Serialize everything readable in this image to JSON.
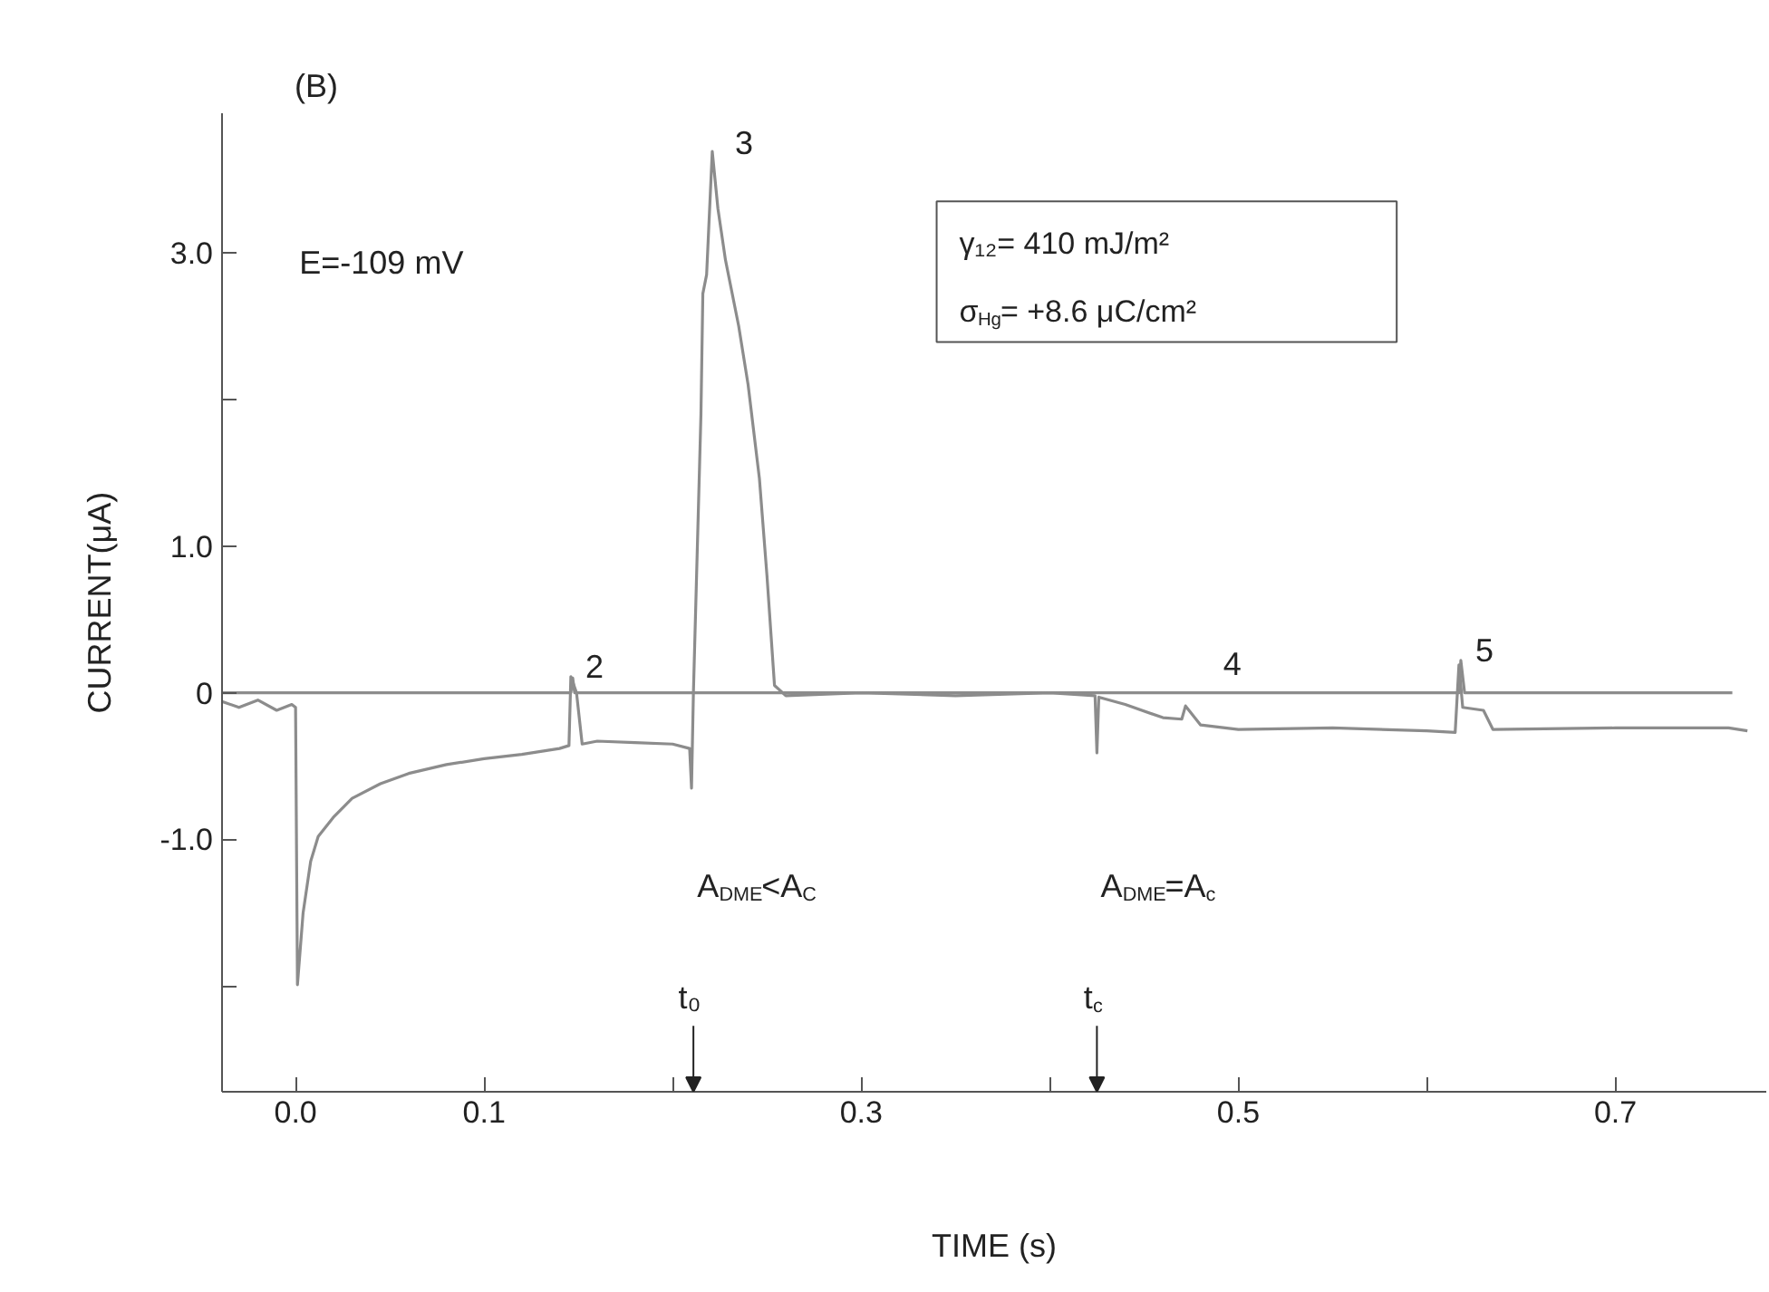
{
  "chart_data": {
    "type": "line",
    "title": "(B)",
    "xlabel": "TIME (s)",
    "ylabel": "CURRENT(μA)",
    "xlim": [
      -0.039,
      0.78
    ],
    "ylim": [
      -2.72,
      3.95
    ],
    "xticks": [
      {
        "value": 0.0,
        "label": "0.0"
      },
      0.1,
      {
        "value": 0.2,
        "label": null
      },
      0.3,
      {
        "value": 0.4,
        "label": null
      },
      0.5,
      {
        "value": 0.6,
        "label": null
      },
      0.7
    ],
    "yticks": [
      {
        "value": -2,
        "label": null
      },
      {
        "value": -1,
        "label": "-1.0"
      },
      0,
      {
        "value": 1,
        "label": "1.0"
      },
      {
        "value": 2,
        "label": null
      },
      {
        "value": 3,
        "label": "3.0"
      }
    ],
    "grid": false,
    "marker": "none",
    "line_style": "solid",
    "series": [
      {
        "color": "#8c8c8c",
        "x": [
          -0.039,
          0.146,
          0.147,
          0.148,
          0.3,
          0.55,
          0.617,
          0.618,
          0.62,
          0.762
        ],
        "values": [
          0.0,
          0.0,
          0.1,
          0.0,
          0.0,
          0.0,
          0.0,
          0.22,
          0.0,
          0.0
        ]
      },
      {
        "color": "#8c8c8c",
        "x": [
          -0.039,
          -0.03,
          -0.02,
          -0.01,
          -0.002,
          0,
          0.001,
          0.004,
          0.008,
          0.012,
          0.02,
          0.03,
          0.045,
          0.06,
          0.08,
          0.1,
          0.12,
          0.14,
          0.145,
          0.146,
          0.149,
          0.152,
          0.16,
          0.18,
          0.2,
          0.209,
          0.21,
          0.211,
          0.213,
          0.215,
          0.216,
          0.218,
          0.221,
          0.224,
          0.228,
          0.235,
          0.24,
          0.246,
          0.25,
          0.254,
          0.26,
          0.3,
          0.35,
          0.4,
          0.424,
          0.425,
          0.426,
          0.44,
          0.46,
          0.47,
          0.472,
          0.48,
          0.5,
          0.55,
          0.6,
          0.615,
          0.617,
          0.619,
          0.63,
          0.635,
          0.7,
          0.76,
          0.77
        ],
        "values": [
          -0.06,
          -0.1,
          -0.05,
          -0.12,
          -0.08,
          -0.1,
          -1.99,
          -1.5,
          -1.15,
          -0.98,
          -0.85,
          -0.72,
          -0.62,
          -0.55,
          -0.49,
          -0.45,
          -0.42,
          -0.38,
          -0.36,
          0.11,
          0.0,
          -0.35,
          -0.33,
          -0.34,
          -0.35,
          -0.38,
          -0.65,
          0.0,
          0.95,
          1.9,
          2.72,
          2.85,
          3.69,
          3.3,
          2.95,
          2.5,
          2.1,
          1.46,
          0.8,
          0.05,
          -0.02,
          0.0,
          -0.02,
          0.0,
          -0.02,
          -0.41,
          -0.03,
          -0.08,
          -0.17,
          -0.18,
          -0.09,
          -0.22,
          -0.25,
          -0.24,
          -0.26,
          -0.27,
          0.19,
          -0.1,
          -0.12,
          -0.25,
          -0.24,
          -0.24,
          -0.26
        ]
      }
    ],
    "annotations": [
      "E=-109 mV",
      "γ₁₂= 410 mJ/m²",
      "σ$_{Hg}$= +8.6 μC/cm²",
      "A$_{DME}$<A$_{C}$",
      "A$_{DME}$=A$_{c}$",
      "3",
      "4",
      "t₀",
      "t$_{c}$",
      {
        "text": "2",
        "x": 0.146,
        "y": 0.11
      },
      {
        "text": "5",
        "x": 0.618,
        "y": 0.22
      }
    ]
  }
}
